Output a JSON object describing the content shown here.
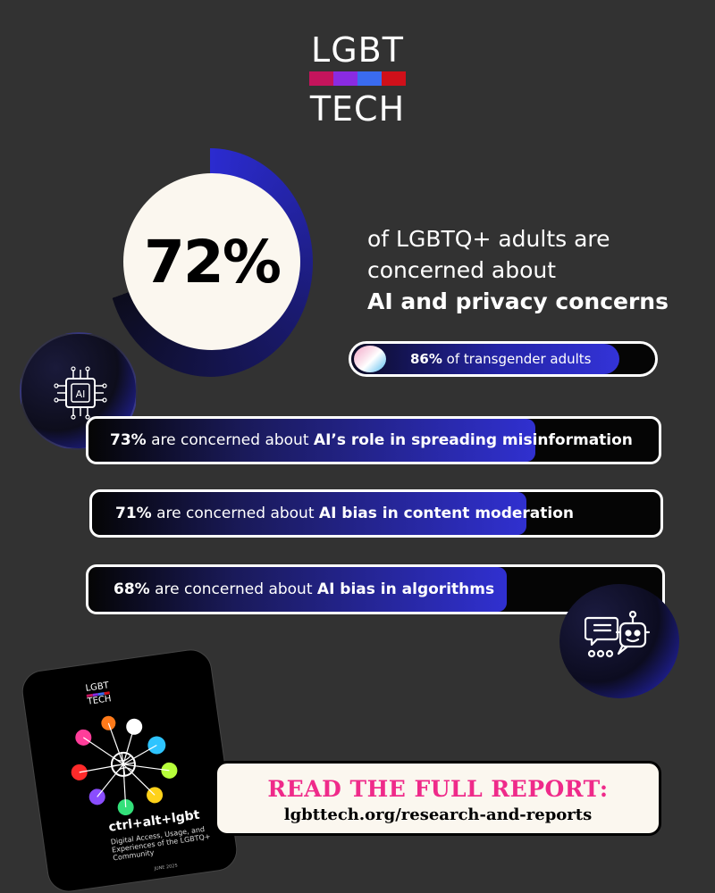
{
  "logo": {
    "line1": "LGBT",
    "line2": "TECH",
    "bar_colors": [
      "#c4145c",
      "#8a2be2",
      "#3a6bf0",
      "#d0101a"
    ]
  },
  "headline": {
    "percent": "72%",
    "text_line1": "of LGBTQ+ adults are",
    "text_line2": "concerned about",
    "text_line3": "AI and privacy concerns"
  },
  "transgender": {
    "percent": "86%",
    "rest": " of transgender adults",
    "value": 86
  },
  "concerns": [
    {
      "percent": "73%",
      "mid": " are concerned about ",
      "topic": "AI’s role in spreading misinformation",
      "value": 73
    },
    {
      "percent": "71%",
      "mid": " are concerned about ",
      "topic": "AI bias in content moderation",
      "value": 71
    },
    {
      "percent": "68%",
      "mid": " are concerned about ",
      "topic": "AI bias in algorithms",
      "value": 68
    }
  ],
  "icons": {
    "ai_chip": "ai-chip-icon",
    "chatbot": "chatbot-icon"
  },
  "chip_label": "AI",
  "report": {
    "logo_line1": "LGBT",
    "logo_line2": "TECH",
    "title": "ctrl+alt+lgbt",
    "subtitle": "Digital Access, Usage, and Experiences of the LGBTQ+ Community",
    "date": "JUNE 2025"
  },
  "cta": {
    "heading": "READ THE FULL REPORT:",
    "url": "lgbttech.org/research-and-reports"
  },
  "colors": {
    "background": "#323232",
    "accent_pink": "#ef2a8a",
    "bar_blue": "#3333d8",
    "cream": "#fbf7ef"
  }
}
